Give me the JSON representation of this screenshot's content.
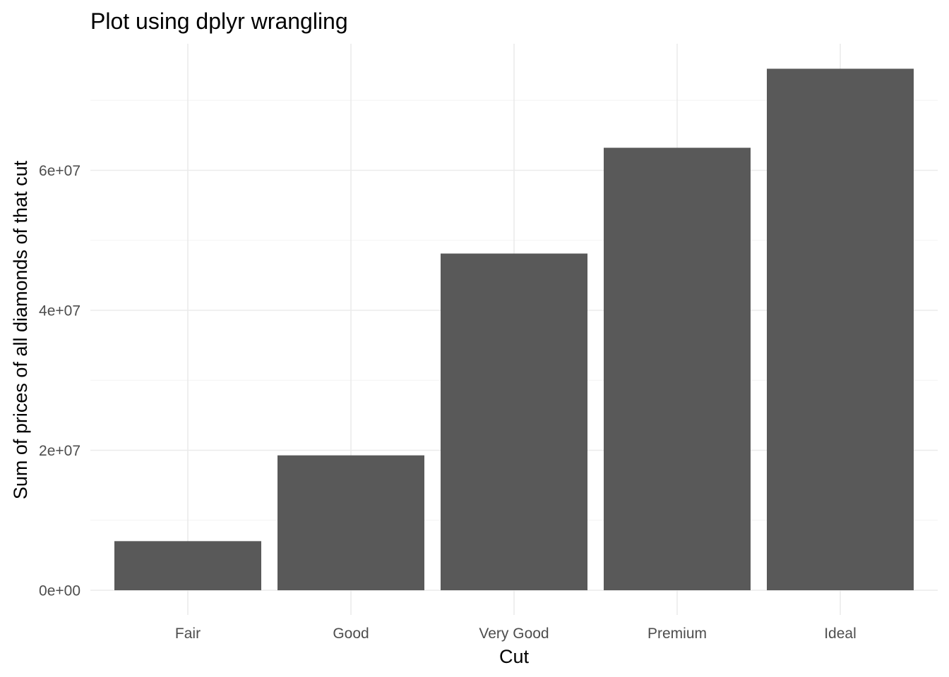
{
  "chart_data": {
    "type": "bar",
    "title": "Plot using dplyr wrangling",
    "xlabel": "Cut",
    "ylabel": "Sum of prices of all diamonds of that cut",
    "categories": [
      "Fair",
      "Good",
      "Very Good",
      "Premium",
      "Ideal"
    ],
    "values": [
      7017600,
      19275009,
      48107623,
      63221498,
      74513487
    ],
    "ylim": [
      0,
      78000000
    ],
    "yticks": [
      0,
      20000000,
      40000000,
      60000000
    ],
    "ytick_labels": [
      "0e+00",
      "2e+07",
      "4e+07",
      "6e+07"
    ],
    "grid": true,
    "bar_color": "#595959",
    "grid_color": "#ebebeb"
  }
}
